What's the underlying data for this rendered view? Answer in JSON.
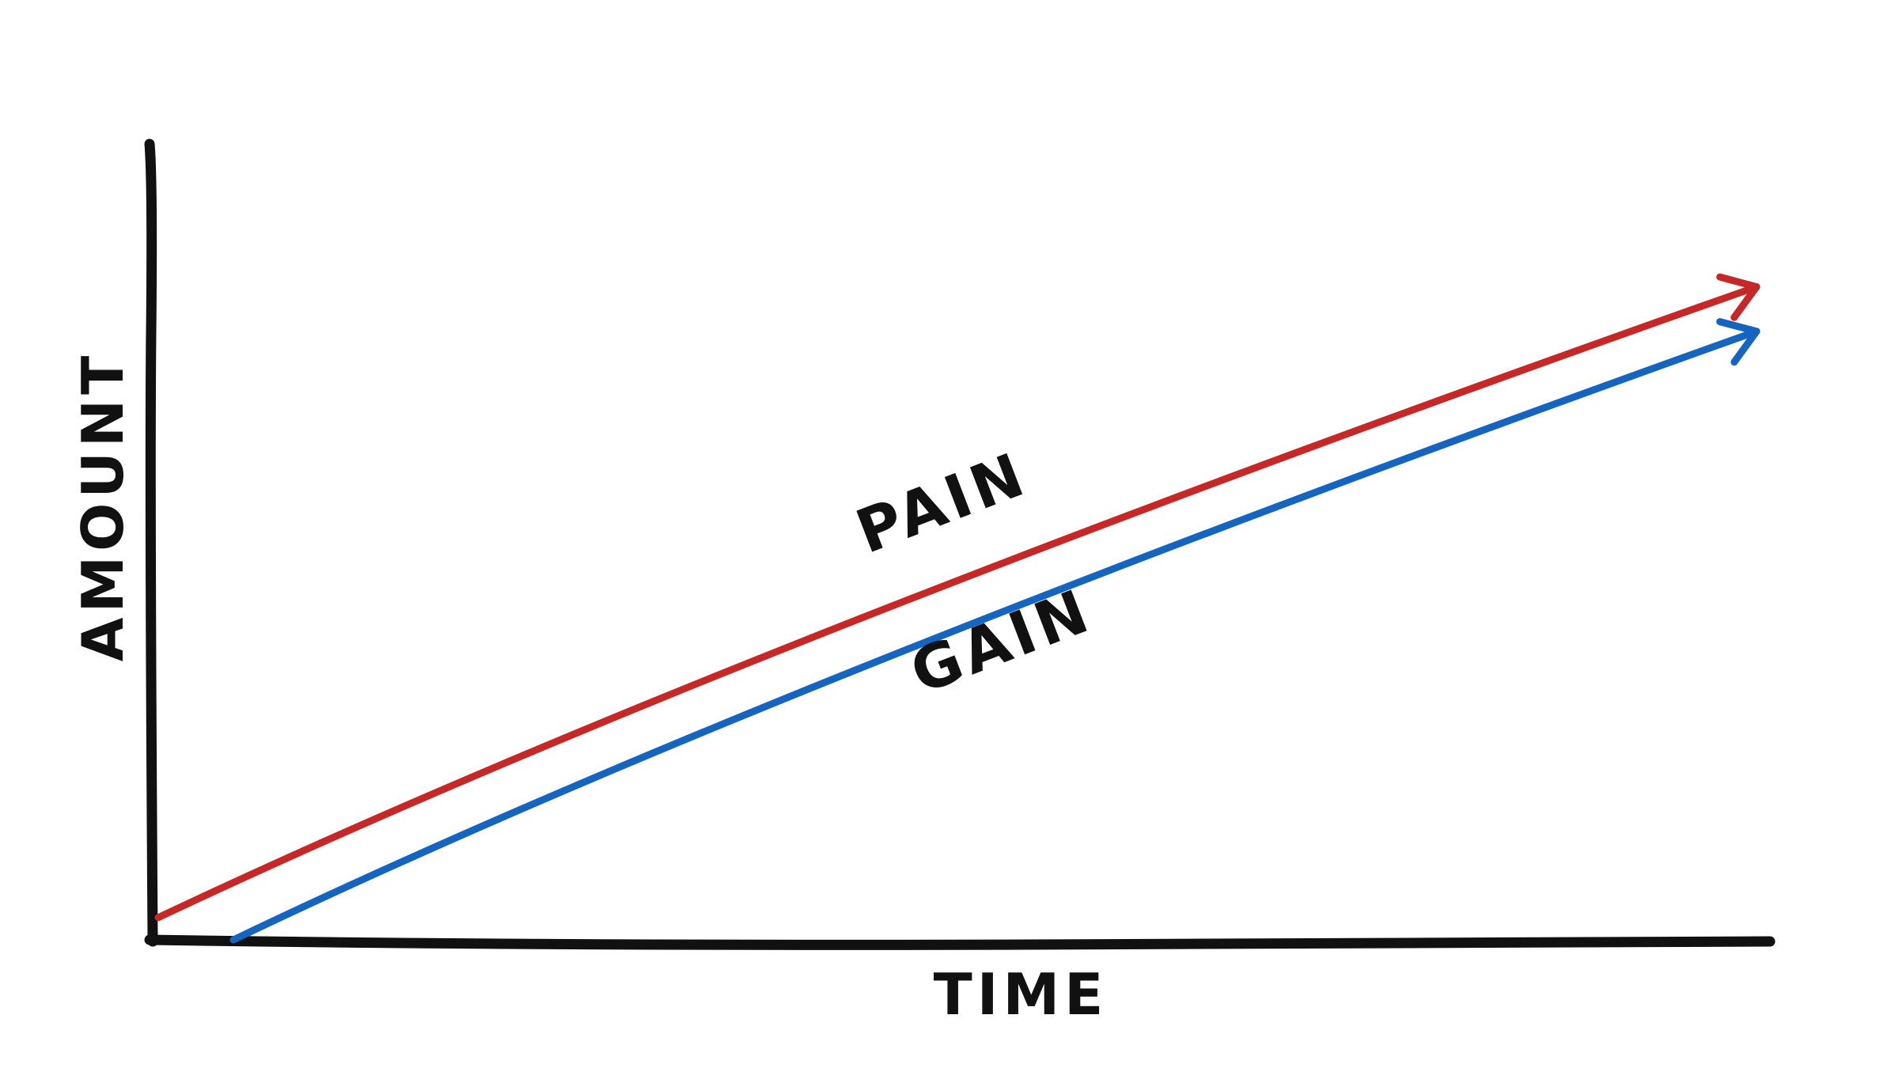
{
  "chart_data": {
    "type": "line",
    "title": "",
    "xlabel": "TIME",
    "ylabel": "AMOUNT",
    "x": [
      0,
      1
    ],
    "series": [
      {
        "name": "PAIN",
        "color": "#c62828",
        "values": [
          0.03,
          0.88
        ]
      },
      {
        "name": "GAIN",
        "color": "#1565c0",
        "values": [
          0.0,
          0.82
        ]
      }
    ],
    "grid": false,
    "legend": "inline labels on lines",
    "axis_color": "#111111",
    "arrowheads": true
  }
}
